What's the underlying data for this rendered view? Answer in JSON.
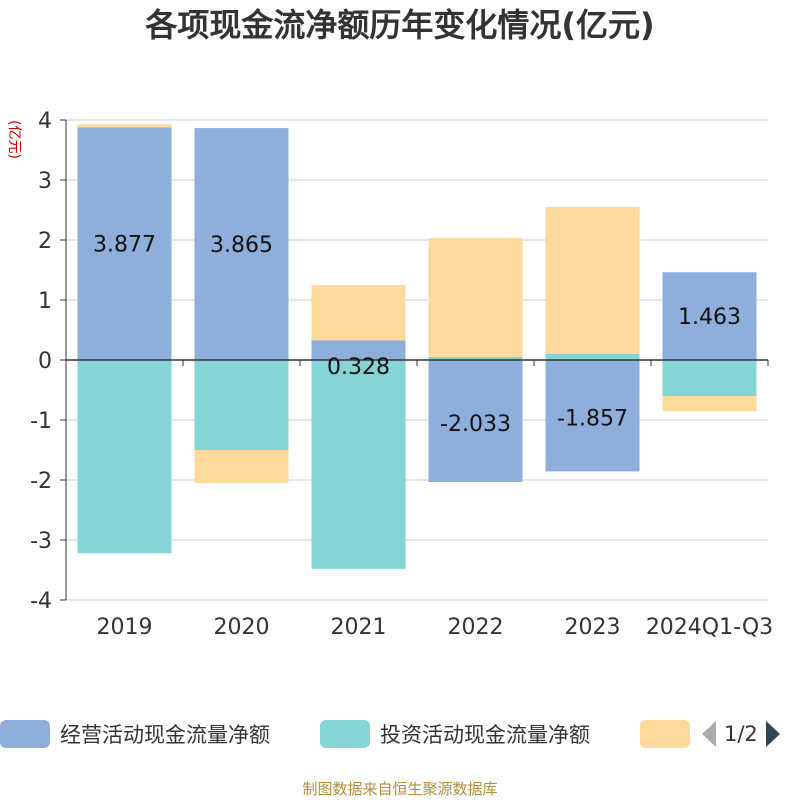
{
  "chart_data": {
    "type": "bar",
    "stacked": true,
    "title": "各项现金流净额历年变化情况(亿元)",
    "ylabel": "(亿元)",
    "ylim": [
      -4,
      4
    ],
    "yticks": [
      "4",
      "3",
      "2",
      "1",
      "0",
      "-1",
      "-2",
      "-3",
      "-4"
    ],
    "categories": [
      "2019",
      "2020",
      "2021",
      "2022",
      "2023",
      "2024Q1-Q3"
    ],
    "series": [
      {
        "name": "经营活动现金流量净额",
        "color": "#8eaedb",
        "values": [
          3.877,
          3.865,
          0.328,
          -2.033,
          -1.857,
          1.463
        ],
        "labels": [
          "3.877",
          "3.865",
          "0.328",
          "-2.033",
          "-1.857",
          "1.463"
        ]
      },
      {
        "name": "投资活动现金流量净额",
        "color": "#86d5d6",
        "values": [
          -3.22,
          -1.5,
          -3.48,
          0.05,
          0.1,
          -0.6
        ]
      },
      {
        "name": "",
        "color": "#fdd99b",
        "values": [
          0.05,
          -0.55,
          0.92,
          1.98,
          2.45,
          -0.25
        ]
      }
    ],
    "grid": true,
    "legend_position": "bottom"
  },
  "legend": {
    "page": "1/2",
    "prev_icon": "triangle-left-icon",
    "next_icon": "triangle-right-icon"
  },
  "footer": "制图数据来自恒生聚源数据库"
}
